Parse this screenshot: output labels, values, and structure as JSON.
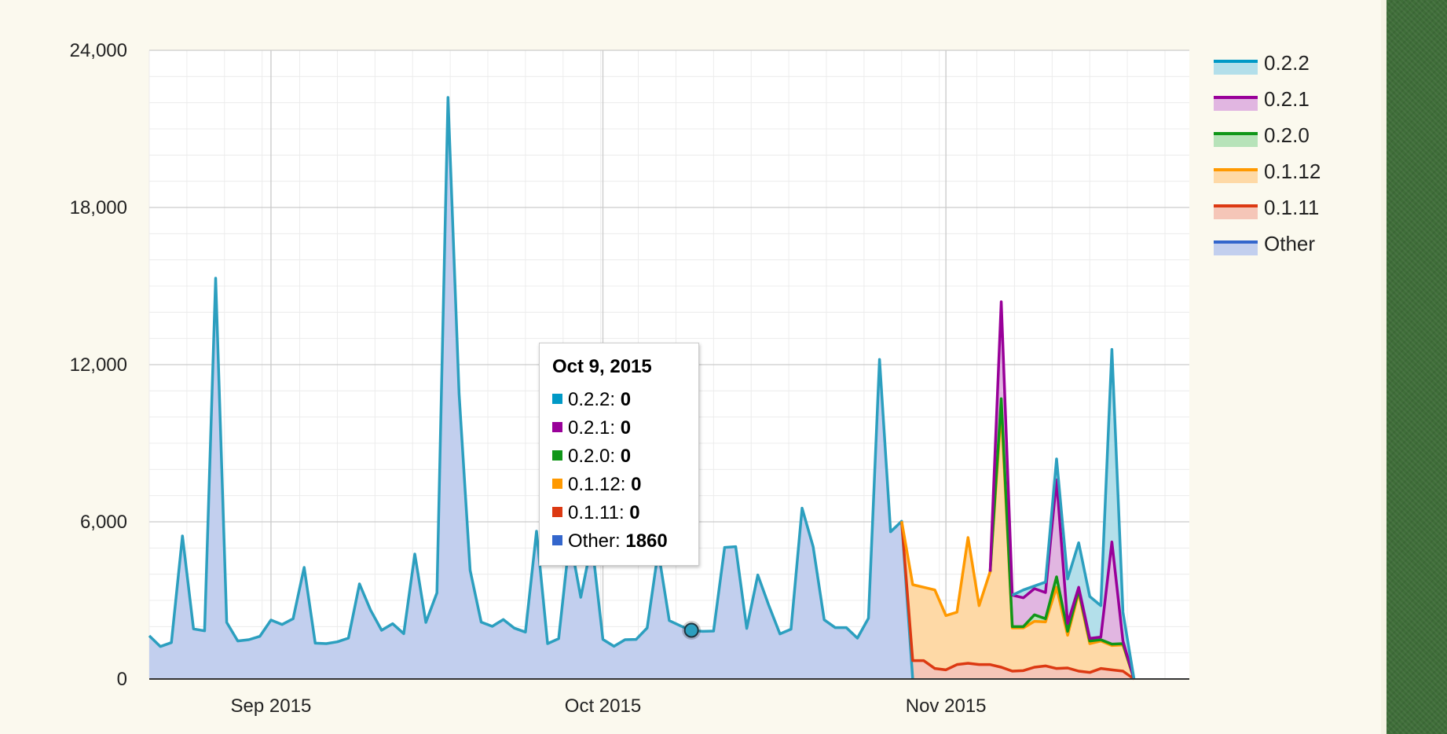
{
  "chart_data": {
    "type": "area",
    "stacked": true,
    "title": "",
    "xlabel": "",
    "ylabel": "",
    "x_start": "2015-08-21",
    "x_end": "2015-11-23",
    "xlim": [
      "2015-08-21",
      "2015-11-23"
    ],
    "ylim": [
      0,
      24000
    ],
    "y_ticks": [
      0,
      6000,
      12000,
      18000,
      24000
    ],
    "y_tick_labels": [
      "0",
      "6,000",
      "12,000",
      "18,000",
      "24,000"
    ],
    "x_ticks": [
      {
        "date": "2015-09-01",
        "label": "Sep 2015"
      },
      {
        "date": "2015-10-01",
        "label": "Oct 2015"
      },
      {
        "date": "2015-11-01",
        "label": "Nov 2015"
      }
    ],
    "grid": true,
    "legend_position": "right",
    "series": [
      {
        "name": "Other",
        "color": "#3366cc",
        "fill": "#c2cfee",
        "line_color": "#2c9fbf",
        "values": [
          1650,
          1240,
          1390,
          5460,
          1910,
          1840,
          15300,
          2160,
          1450,
          1500,
          1630,
          2250,
          2080,
          2300,
          4260,
          1370,
          1350,
          1420,
          1560,
          3630,
          2630,
          1860,
          2110,
          1730,
          4770,
          2160,
          3290,
          22200,
          10900,
          4150,
          2170,
          2010,
          2270,
          1940,
          1790,
          5640,
          1350,
          1540,
          5410,
          3120,
          5220,
          1510,
          1250,
          1500,
          1510,
          1950,
          4890,
          2230,
          2030,
          1860,
          1820,
          1830,
          5020,
          5050,
          1930,
          3970,
          2800,
          1720,
          1900,
          6520,
          5050,
          2260,
          1960,
          1960,
          1560,
          2320,
          12200,
          5620,
          6020,
          0,
          0,
          0,
          0,
          0,
          0,
          0,
          0,
          0,
          0,
          0,
          0,
          0,
          0,
          0,
          0,
          0,
          0,
          0,
          0,
          0,
          0,
          0,
          0,
          0,
          0
        ]
      },
      {
        "name": "0.1.11",
        "color": "#dc3912",
        "fill": "#f5c6b8",
        "line_color": "#dc3912",
        "values": [
          0,
          0,
          0,
          0,
          0,
          0,
          0,
          0,
          0,
          0,
          0,
          0,
          0,
          0,
          0,
          0,
          0,
          0,
          0,
          0,
          0,
          0,
          0,
          0,
          0,
          0,
          0,
          0,
          0,
          0,
          0,
          0,
          0,
          0,
          0,
          0,
          0,
          0,
          0,
          0,
          0,
          0,
          0,
          0,
          0,
          0,
          0,
          0,
          0,
          0,
          0,
          0,
          0,
          0,
          0,
          0,
          0,
          0,
          0,
          0,
          0,
          0,
          0,
          0,
          0,
          0,
          0,
          0,
          0,
          700,
          700,
          400,
          350,
          550,
          600,
          550,
          550,
          450,
          300,
          320,
          450,
          500,
          400,
          420,
          300,
          250,
          400,
          350,
          300,
          0,
          0,
          0,
          0,
          0,
          0
        ]
      },
      {
        "name": "0.1.12",
        "color": "#ff9900",
        "fill": "#fed9a6",
        "line_color": "#ff9900",
        "values": [
          0,
          0,
          0,
          0,
          0,
          0,
          0,
          0,
          0,
          0,
          0,
          0,
          0,
          0,
          0,
          0,
          0,
          0,
          0,
          0,
          0,
          0,
          0,
          0,
          0,
          0,
          0,
          0,
          0,
          0,
          0,
          0,
          0,
          0,
          0,
          0,
          0,
          0,
          0,
          0,
          0,
          0,
          0,
          0,
          0,
          0,
          0,
          0,
          0,
          0,
          0,
          0,
          0,
          0,
          0,
          0,
          0,
          0,
          0,
          0,
          0,
          0,
          0,
          0,
          0,
          0,
          0,
          0,
          0,
          2900,
          2800,
          3000,
          2070,
          2000,
          4800,
          2250,
          3550,
          9850,
          1650,
          1630,
          1750,
          1680,
          3100,
          1250,
          3000,
          1100,
          1050,
          930,
          1000,
          0,
          0,
          0,
          0,
          0,
          0
        ]
      },
      {
        "name": "0.2.0",
        "color": "#109618",
        "fill": "#b7e3b9",
        "line_color": "#109618",
        "values": [
          0,
          0,
          0,
          0,
          0,
          0,
          0,
          0,
          0,
          0,
          0,
          0,
          0,
          0,
          0,
          0,
          0,
          0,
          0,
          0,
          0,
          0,
          0,
          0,
          0,
          0,
          0,
          0,
          0,
          0,
          0,
          0,
          0,
          0,
          0,
          0,
          0,
          0,
          0,
          0,
          0,
          0,
          0,
          0,
          0,
          0,
          0,
          0,
          0,
          0,
          0,
          0,
          0,
          0,
          0,
          0,
          0,
          0,
          0,
          0,
          0,
          0,
          0,
          0,
          0,
          0,
          0,
          0,
          0,
          0,
          0,
          0,
          0,
          0,
          0,
          0,
          0,
          400,
          50,
          50,
          250,
          120,
          400,
          150,
          100,
          100,
          50,
          50,
          50,
          0,
          0,
          0,
          0,
          0,
          0
        ]
      },
      {
        "name": "0.2.1",
        "color": "#990099",
        "fill": "#e1b6e1",
        "line_color": "#990099",
        "values": [
          0,
          0,
          0,
          0,
          0,
          0,
          0,
          0,
          0,
          0,
          0,
          0,
          0,
          0,
          0,
          0,
          0,
          0,
          0,
          0,
          0,
          0,
          0,
          0,
          0,
          0,
          0,
          0,
          0,
          0,
          0,
          0,
          0,
          0,
          0,
          0,
          0,
          0,
          0,
          0,
          0,
          0,
          0,
          0,
          0,
          0,
          0,
          0,
          0,
          0,
          0,
          0,
          0,
          0,
          0,
          0,
          0,
          0,
          0,
          0,
          0,
          0,
          0,
          0,
          0,
          0,
          0,
          0,
          0,
          0,
          0,
          0,
          0,
          0,
          0,
          0,
          0,
          3700,
          1200,
          1100,
          1000,
          1000,
          3700,
          300,
          100,
          100,
          100,
          3900,
          100,
          0,
          0,
          0,
          0,
          0,
          0
        ]
      },
      {
        "name": "0.2.2",
        "color": "#0099c6",
        "fill": "#b3dfea",
        "line_color": "#2c9fbf",
        "values": [
          0,
          0,
          0,
          0,
          0,
          0,
          0,
          0,
          0,
          0,
          0,
          0,
          0,
          0,
          0,
          0,
          0,
          0,
          0,
          0,
          0,
          0,
          0,
          0,
          0,
          0,
          0,
          0,
          0,
          0,
          0,
          0,
          0,
          0,
          0,
          0,
          0,
          0,
          0,
          0,
          0,
          0,
          0,
          0,
          0,
          0,
          0,
          0,
          0,
          0,
          0,
          0,
          0,
          0,
          0,
          0,
          0,
          0,
          0,
          0,
          0,
          0,
          0,
          0,
          0,
          0,
          0,
          0,
          0,
          0,
          0,
          0,
          0,
          0,
          0,
          0,
          0,
          0,
          0,
          300,
          100,
          400,
          800,
          1700,
          1700,
          1600,
          1200,
          7350,
          1100,
          0,
          0,
          0,
          0,
          0,
          0
        ]
      }
    ],
    "legend": [
      {
        "name": "0.2.2",
        "color": "#0099c6",
        "fill": "#b3dfea"
      },
      {
        "name": "0.2.1",
        "color": "#990099",
        "fill": "#e1b6e1"
      },
      {
        "name": "0.2.0",
        "color": "#109618",
        "fill": "#b7e3b9"
      },
      {
        "name": "0.1.12",
        "color": "#ff9900",
        "fill": "#fed9a6"
      },
      {
        "name": "0.1.11",
        "color": "#dc3912",
        "fill": "#f5c6b8"
      },
      {
        "name": "Other",
        "color": "#3366cc",
        "fill": "#c2cfee"
      }
    ],
    "tooltip": {
      "title": "Oct 9, 2015",
      "date": "2015-10-09",
      "rows": [
        {
          "label": "0.2.2",
          "value": "0",
          "color": "#0099c6"
        },
        {
          "label": "0.2.1",
          "value": "0",
          "color": "#990099"
        },
        {
          "label": "0.2.0",
          "value": "0",
          "color": "#109618"
        },
        {
          "label": "0.1.12",
          "value": "0",
          "color": "#ff9900"
        },
        {
          "label": "0.1.11",
          "value": "0",
          "color": "#dc3912"
        },
        {
          "label": "Other",
          "value": "1860",
          "color": "#3366cc"
        }
      ]
    }
  }
}
